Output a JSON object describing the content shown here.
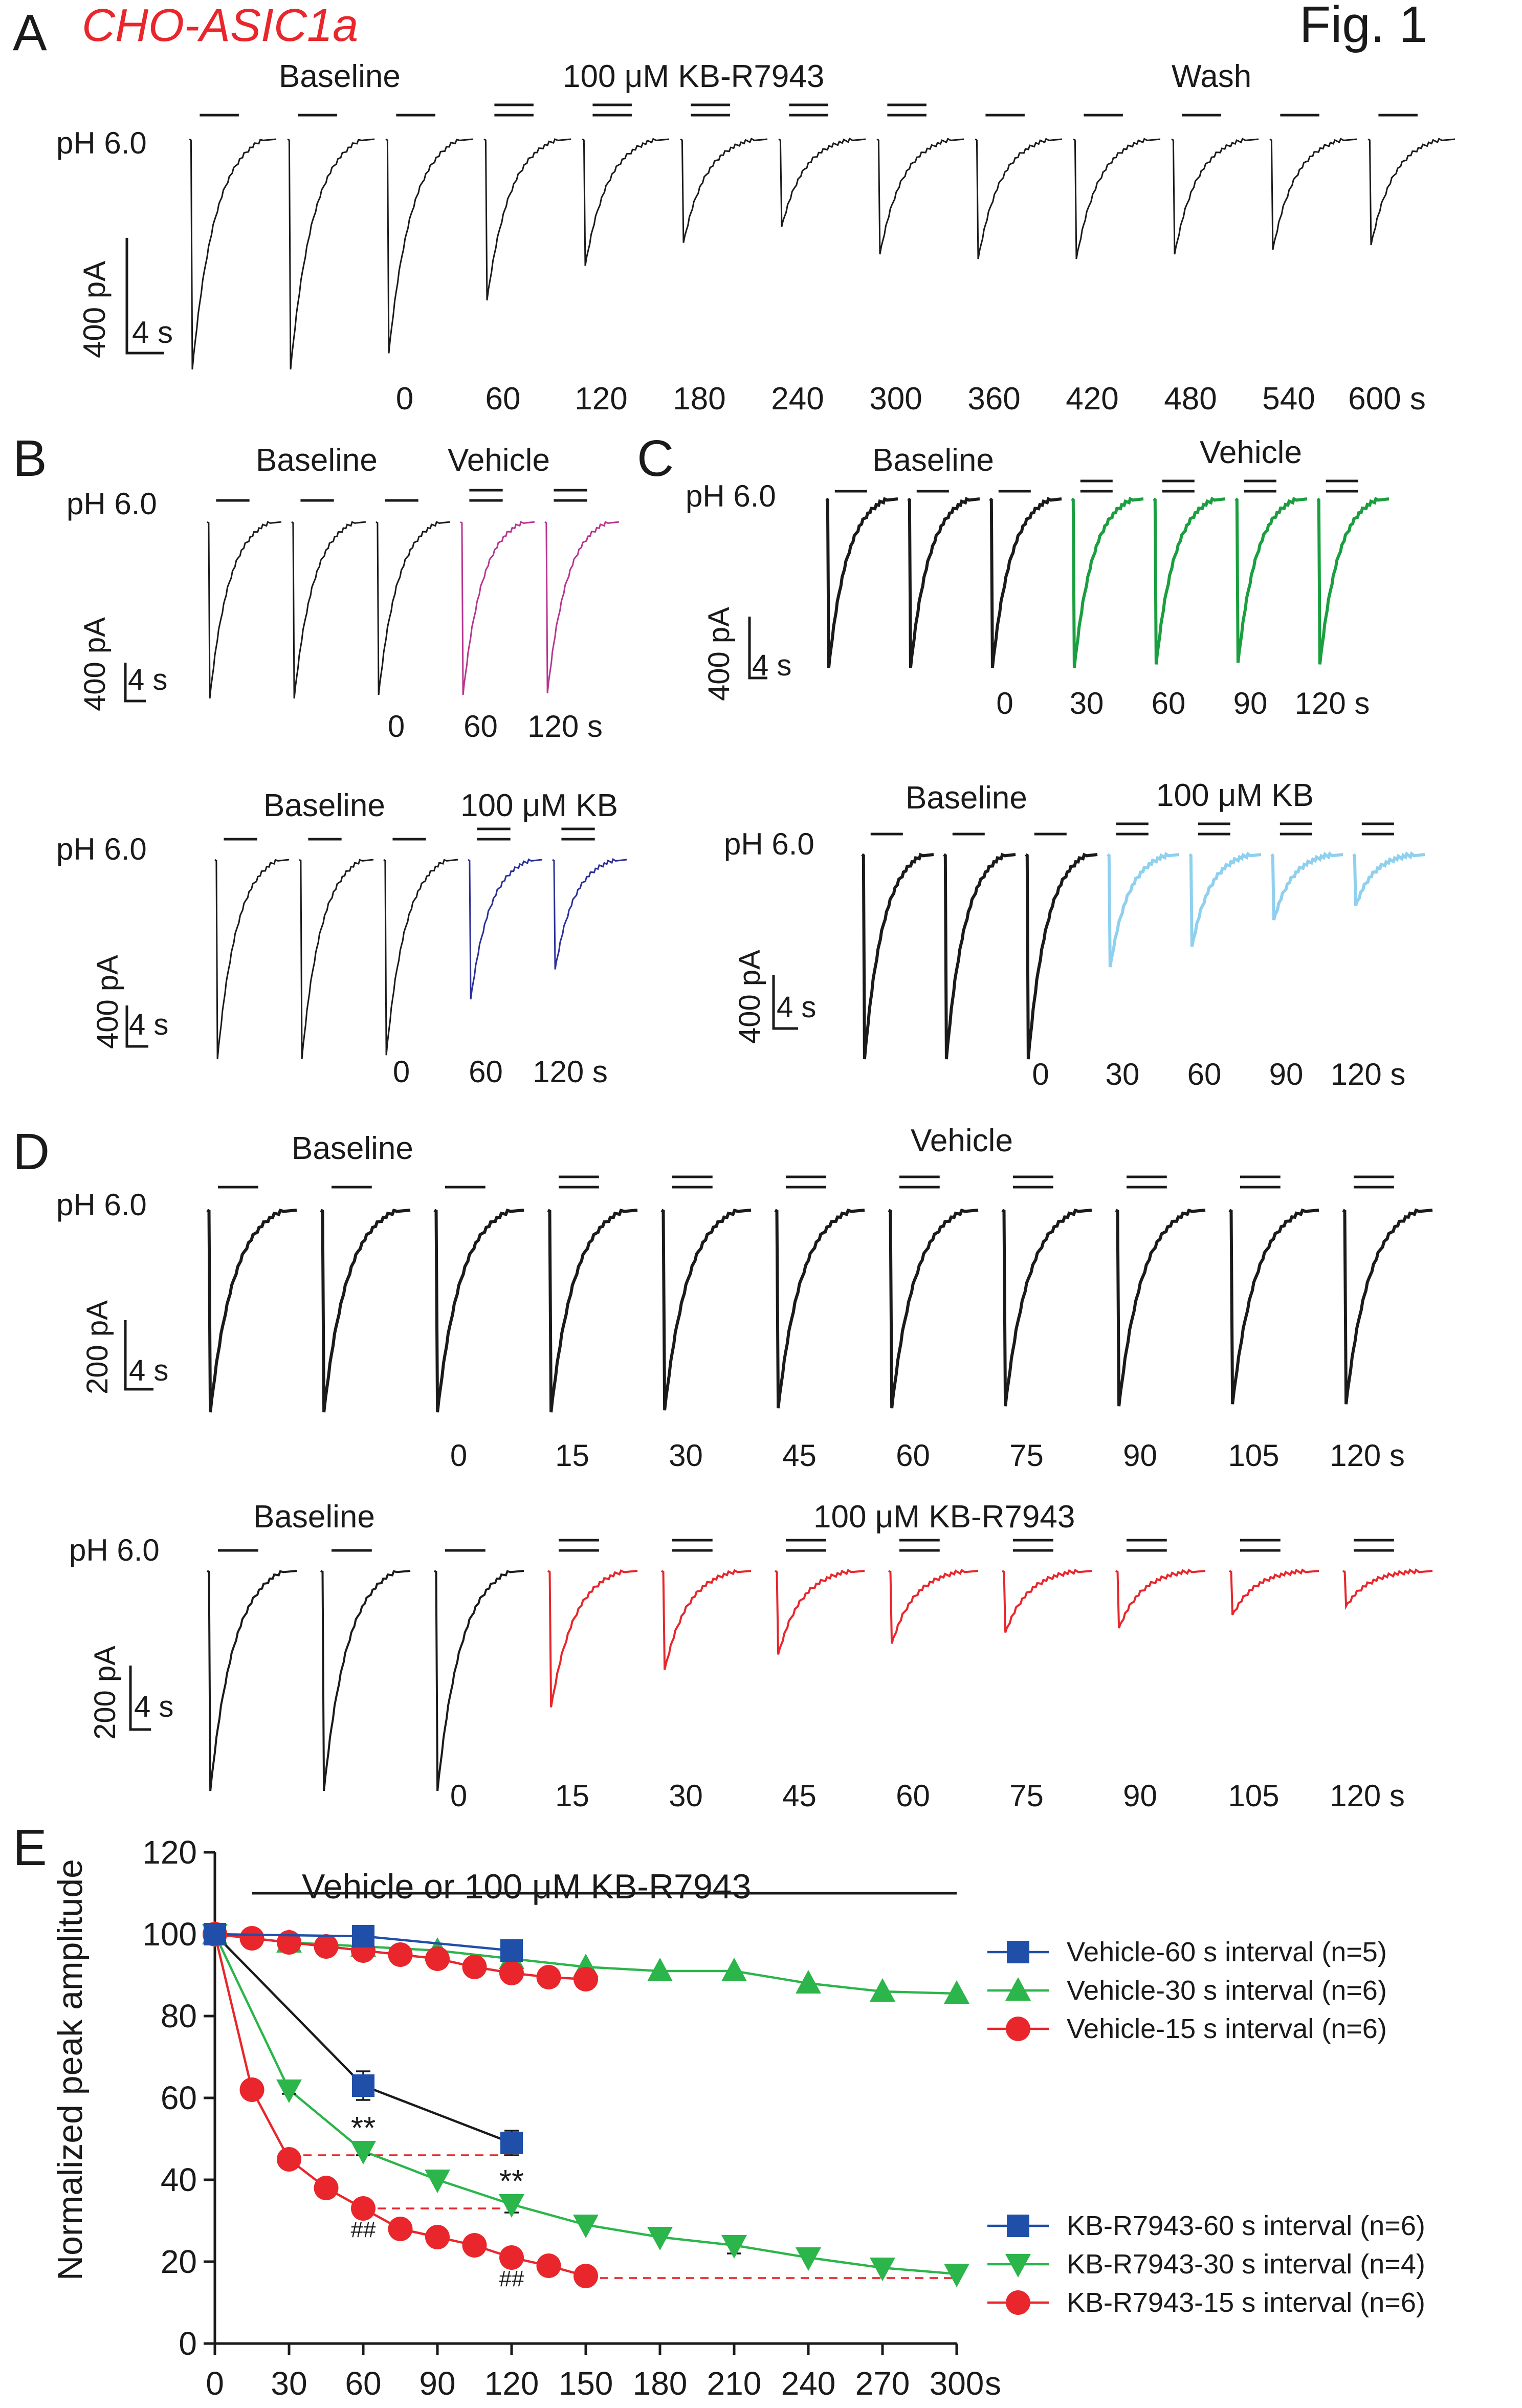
{
  "figure_title": "Fig. 1",
  "cell_label": "CHO-ASIC1a",
  "colors": {
    "black": "#1a1a1a",
    "red": "#e8262b",
    "magenta": "#b8348f",
    "navy": "#2a2f9a",
    "green": "#1a9e3f",
    "lightblue": "#8fd0ef",
    "blue": "#1f4fa8",
    "lime": "#2bb54a",
    "dashed_red": "#e8262b"
  },
  "panel_A": {
    "letter": "A",
    "labels": {
      "baseline": "Baseline",
      "drug": "100 μM KB-R7943",
      "wash": "Wash",
      "ph": "pH 6.0"
    },
    "scale": {
      "current": "400 pA",
      "time": "4 s"
    },
    "time_labels": [
      "0",
      "60",
      "120",
      "180",
      "240",
      "300",
      "360",
      "420",
      "480",
      "540",
      "600 s"
    ],
    "trace_peaks": [
      1.0,
      1.0,
      0.93,
      0.7,
      0.55,
      0.45,
      0.38,
      0.5,
      0.52,
      0.52,
      0.5,
      0.48,
      0.46
    ],
    "drug_flags": [
      0,
      0,
      0,
      1,
      1,
      1,
      1,
      1,
      0,
      0,
      0,
      0,
      0
    ]
  },
  "panel_B": {
    "letter": "B",
    "top": {
      "labels": {
        "baseline": "Baseline",
        "drug": "Vehicle",
        "ph": "pH 6.0"
      },
      "scale": {
        "current": "400 pA",
        "time": "4 s"
      },
      "time_labels": [
        "0",
        "60",
        "120 s"
      ],
      "trace_peaks": [
        1.0,
        1.0,
        0.98,
        0.98,
        0.97
      ],
      "drug_flags": [
        0,
        0,
        0,
        1,
        1
      ]
    },
    "bottom": {
      "labels": {
        "baseline": "Baseline",
        "drug": "100 μM KB",
        "ph": "pH 6.0"
      },
      "scale": {
        "current": "400 pA",
        "time": "4 s"
      },
      "time_labels": [
        "0",
        "60",
        "120 s"
      ],
      "trace_peaks": [
        1.0,
        1.0,
        0.98,
        0.7,
        0.55
      ],
      "drug_flags": [
        0,
        0,
        0,
        1,
        1
      ]
    }
  },
  "panel_C": {
    "letter": "C",
    "top": {
      "labels": {
        "baseline": "Baseline",
        "drug": "Vehicle",
        "ph": "pH 6.0"
      },
      "scale": {
        "current": "400 pA",
        "time": "4 s"
      },
      "time_labels": [
        "0",
        "30",
        "60",
        "90",
        "120 s"
      ],
      "trace_peaks": [
        1.0,
        1.0,
        1.0,
        1.0,
        0.98,
        0.97,
        0.98
      ],
      "drug_flags": [
        0,
        0,
        0,
        1,
        1,
        1,
        1
      ]
    },
    "bottom": {
      "labels": {
        "baseline": "Baseline",
        "drug": "100 μM KB",
        "ph": "pH 6.0"
      },
      "scale": {
        "current": "400 pA",
        "time": "4 s"
      },
      "time_labels": [
        "0",
        "30",
        "60",
        "90",
        "120 s"
      ],
      "trace_peaks": [
        1.0,
        1.0,
        1.0,
        0.55,
        0.45,
        0.32,
        0.25
      ],
      "drug_flags": [
        0,
        0,
        0,
        1,
        1,
        1,
        1
      ]
    }
  },
  "panel_D": {
    "letter": "D",
    "top": {
      "labels": {
        "baseline": "Baseline",
        "drug": "Vehicle",
        "ph": "pH 6.0"
      },
      "scale": {
        "current": "200 pA",
        "time": "4 s"
      },
      "time_labels": [
        "0",
        "15",
        "30",
        "45",
        "60",
        "75",
        "90",
        "105",
        "120 s"
      ],
      "trace_peaks": [
        1.0,
        1.0,
        1.0,
        1.0,
        0.99,
        0.98,
        0.98,
        0.97,
        0.97,
        0.96,
        0.96
      ],
      "drug_flags": [
        0,
        0,
        0,
        1,
        1,
        1,
        1,
        1,
        1,
        1,
        1
      ]
    },
    "bottom": {
      "labels": {
        "baseline": "Baseline",
        "drug": "100 μM KB-R7943",
        "ph": "pH 6.0"
      },
      "scale": {
        "current": "200 pA",
        "time": "4 s"
      },
      "time_labels": [
        "0",
        "15",
        "30",
        "45",
        "60",
        "75",
        "90",
        "105",
        "120 s"
      ],
      "trace_peaks": [
        1.0,
        1.0,
        1.0,
        0.62,
        0.45,
        0.38,
        0.33,
        0.28,
        0.26,
        0.2,
        0.16
      ],
      "drug_flags": [
        0,
        0,
        0,
        1,
        1,
        1,
        1,
        1,
        1,
        1,
        1
      ]
    }
  },
  "chart_data": {
    "type": "line",
    "panel_letter": "E",
    "ylabel": "Normalized peak  amplitude",
    "xlabel": "",
    "x_unit_label": "s",
    "ylim": [
      0,
      120
    ],
    "xlim": [
      0,
      300
    ],
    "yticks": [
      0,
      20,
      40,
      60,
      80,
      100,
      120
    ],
    "xticks": [
      0,
      30,
      60,
      90,
      120,
      150,
      180,
      210,
      240,
      270,
      300
    ],
    "treatment_bar": {
      "label": "Vehicle or 100 μM KB-R7943",
      "start": 15,
      "end": 300
    },
    "series": [
      {
        "name": "Vehicle-60 s interval (n=5)",
        "marker": "square",
        "color": "#1f4fa8",
        "x": [
          0,
          60,
          120
        ],
        "y": [
          100,
          99.5,
          96
        ],
        "err": [
          0,
          0,
          1
        ]
      },
      {
        "name": "Vehicle-30 s interval (n=6)",
        "marker": "triangle-up",
        "color": "#2bb54a",
        "x": [
          0,
          30,
          60,
          90,
          120,
          150,
          180,
          210,
          240,
          270,
          300
        ],
        "y": [
          100,
          98,
          97,
          96,
          94,
          92,
          91,
          91,
          88,
          86,
          85.5
        ],
        "err": [
          0,
          0,
          0,
          0,
          0,
          0,
          0,
          0,
          0,
          0,
          0
        ]
      },
      {
        "name": "Vehicle-15 s interval (n=6)",
        "marker": "circle",
        "color": "#e8262b",
        "x": [
          0,
          15,
          30,
          45,
          60,
          75,
          90,
          105,
          120,
          135,
          150
        ],
        "y": [
          100,
          99,
          98,
          97,
          96,
          95,
          94,
          92,
          90.5,
          89.5,
          89
        ],
        "err": [
          0,
          0,
          0,
          0,
          0,
          0,
          0,
          0,
          0,
          0,
          0
        ]
      },
      {
        "name": "KB-R7943-60 s interval (n=6)",
        "marker": "square",
        "color": "#1f4fa8",
        "line_color": "#1a1a1a",
        "x": [
          0,
          60,
          120
        ],
        "y": [
          100,
          63,
          49
        ],
        "err": [
          0,
          3.5,
          3
        ]
      },
      {
        "name": "KB-R7943-30 s interval (n=4)",
        "marker": "triangle-down",
        "color": "#2bb54a",
        "x": [
          0,
          30,
          60,
          90,
          120,
          150,
          180,
          210,
          240,
          270,
          300
        ],
        "y": [
          100,
          62,
          47,
          40,
          34,
          29,
          26,
          24,
          21,
          18.5,
          17
        ],
        "err": [
          0,
          1,
          1,
          0,
          2,
          0,
          0,
          2,
          0,
          0,
          0
        ]
      },
      {
        "name": "KB-R7943-15 s interval (n=6)",
        "marker": "circle",
        "color": "#e8262b",
        "x": [
          0,
          15,
          30,
          45,
          60,
          75,
          90,
          105,
          120,
          135,
          150
        ],
        "y": [
          100,
          62,
          45,
          38,
          33,
          28,
          26,
          24,
          21,
          19,
          16.5
        ],
        "err": [
          0,
          0,
          0,
          0,
          2,
          2,
          0,
          0,
          0,
          0,
          0
        ]
      }
    ],
    "reference_lines": [
      {
        "y": 46,
        "x_start": 30,
        "x_end": 120
      },
      {
        "y": 33,
        "x_start": 60,
        "x_end": 120
      },
      {
        "y": 16,
        "x_start": 150,
        "x_end": 300
      }
    ],
    "annotations": [
      {
        "text": "**",
        "x": 60,
        "y": 50
      },
      {
        "text": "**",
        "x": 120,
        "y": 37
      },
      {
        "text": "##",
        "x": 60,
        "y": 26
      },
      {
        "text": "##",
        "x": 120,
        "y": 14
      }
    ]
  }
}
